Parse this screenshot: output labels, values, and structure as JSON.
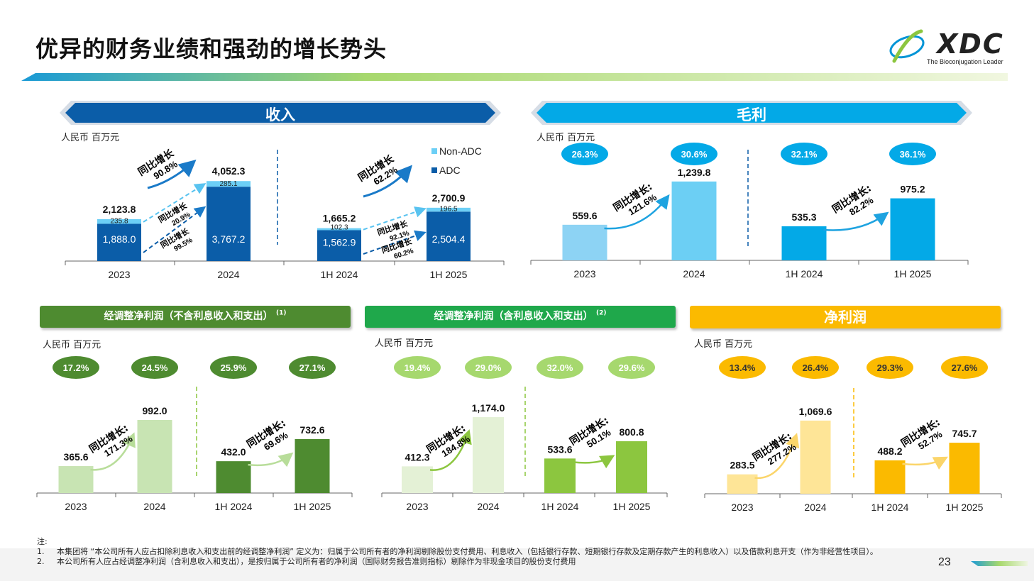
{
  "page": {
    "title": "优异的财务业绩和强劲的增长势头",
    "page_number": "23",
    "logo": {
      "text": "XDC",
      "tagline": "The Bioconjugation Leader"
    },
    "colors": {
      "revenue": "#0B5DA8",
      "gross": "#03A9E7",
      "adj1": "#4E8B30",
      "adj2": "#8CC63F",
      "net": "#FBBA00"
    }
  },
  "panels": {
    "revenue": {
      "title": "收入",
      "unit": "人民币 百万元",
      "legend": [
        "Non-ADC",
        "ADC"
      ]
    },
    "gross": {
      "title": "毛利",
      "unit": "人民币 百万元"
    },
    "adj1": {
      "title": "经调整净利润（不含利息收入和支出）",
      "note_ref": "(1)",
      "unit": "人民币 百万元"
    },
    "adj2": {
      "title": "经调整净利润（含利息收入和支出）",
      "note_ref": "(2)",
      "unit": "人民币 百万元"
    },
    "net": {
      "title": "净利润",
      "unit": "人民币 百万元"
    }
  },
  "chart_data": [
    {
      "id": "revenue",
      "type": "bar",
      "stacked": true,
      "title": "收入",
      "ylabel": "人民币 百万元",
      "categories": [
        "2023",
        "2024",
        "1H 2024",
        "1H 2025"
      ],
      "series": [
        {
          "name": "ADC",
          "values": [
            1888.0,
            3767.2,
            1562.9,
            2504.4
          ],
          "labels": [
            "1,888.0",
            "3,767.2",
            "1,562.9",
            "2,504.4"
          ]
        },
        {
          "name": "Non-ADC",
          "values": [
            235.8,
            285.1,
            102.3,
            196.5
          ],
          "labels": [
            "235.8",
            "285.1",
            "102.3",
            "196.5"
          ]
        }
      ],
      "totals": [
        "2,123.8",
        "4,052.3",
        "1,665.2",
        "2,700.9"
      ],
      "ylim": [
        0,
        4600
      ],
      "growth": [
        {
          "label": "同比增长",
          "value": "90.8%"
        },
        {
          "label": "同比增长",
          "value": "62.2%"
        },
        {
          "label": "同比增长",
          "value": "20.9%"
        },
        {
          "label": "同比增长",
          "value": "99.5%"
        },
        {
          "label": "同比增长",
          "value": "92.1%"
        },
        {
          "label": "同比增长",
          "value": "60.2%"
        }
      ]
    },
    {
      "id": "gross",
      "type": "bar",
      "title": "毛利",
      "ylabel": "人民币 百万元",
      "categories": [
        "2023",
        "2024",
        "1H 2024",
        "1H 2025"
      ],
      "values": [
        559.6,
        1239.8,
        535.3,
        975.2
      ],
      "labels": [
        "559.6",
        "1,239.8",
        "535.3",
        "975.2"
      ],
      "margins": [
        "26.3%",
        "30.6%",
        "32.1%",
        "36.1%"
      ],
      "ylim": [
        0,
        1450
      ],
      "growth": [
        {
          "label": "同比增长:",
          "value": "121.6%"
        },
        {
          "label": "同比增长:",
          "value": "82.2%"
        }
      ]
    },
    {
      "id": "adj1",
      "type": "bar",
      "title": "经调整净利润（不含利息收入和支出）",
      "ylabel": "人民币 百万元",
      "categories": [
        "2023",
        "2024",
        "1H 2024",
        "1H 2025"
      ],
      "values": [
        365.6,
        992.0,
        432.0,
        732.6
      ],
      "labels": [
        "365.6",
        "992.0",
        "432.0",
        "732.6"
      ],
      "margins": [
        "17.2%",
        "24.5%",
        "25.9%",
        "27.1%"
      ],
      "ylim": [
        0,
        1300
      ],
      "growth": [
        {
          "label": "同比增长:",
          "value": "171.3%"
        },
        {
          "label": "同比增长:",
          "value": "69.6%"
        }
      ]
    },
    {
      "id": "adj2",
      "type": "bar",
      "title": "经调整净利润（含利息收入和支出）",
      "ylabel": "人民币 百万元",
      "categories": [
        "2023",
        "2024",
        "1H 2024",
        "1H 2025"
      ],
      "values": [
        412.3,
        1174.0,
        533.6,
        800.8
      ],
      "labels": [
        "412.3",
        "1,174.0",
        "533.6",
        "800.8"
      ],
      "margins": [
        "19.4%",
        "29.0%",
        "32.0%",
        "29.6%"
      ],
      "ylim": [
        0,
        1480
      ],
      "growth": [
        {
          "label": "同比增长:",
          "value": "184.8%"
        },
        {
          "label": "同比增长:",
          "value": "50.1%"
        }
      ]
    },
    {
      "id": "net",
      "type": "bar",
      "title": "净利润",
      "ylabel": "人民币 百万元",
      "categories": [
        "2023",
        "2024",
        "1H 2024",
        "1H 2025"
      ],
      "values": [
        283.5,
        1069.6,
        488.2,
        745.7
      ],
      "labels": [
        "283.5",
        "1,069.6",
        "488.2",
        "745.7"
      ],
      "margins": [
        "13.4%",
        "26.4%",
        "29.3%",
        "27.6%"
      ],
      "ylim": [
        0,
        1400
      ],
      "growth": [
        {
          "label": "同比增长:",
          "value": "277.2%"
        },
        {
          "label": "同比增长:",
          "value": "52.7%"
        }
      ]
    }
  ],
  "notes": {
    "heading": "注:",
    "items": [
      {
        "num": "1.",
        "text": "本集团将 “本公司所有人应占扣除利息收入和支出前的经调整净利润” 定义为：归属于公司所有者的净利润剔除股份支付费用、利息收入（包括银行存款、短期银行存款及定期存款产生的利息收入）以及借款利息开支（作为非经营性项目）。"
      },
      {
        "num": "2.",
        "text": "本公司所有人应占经调整净利润（含利息收入和支出），是按归属于公司所有者的净利润（国际财务报告准则指标）剔除作为非现金项目的股份支付费用"
      }
    ]
  }
}
